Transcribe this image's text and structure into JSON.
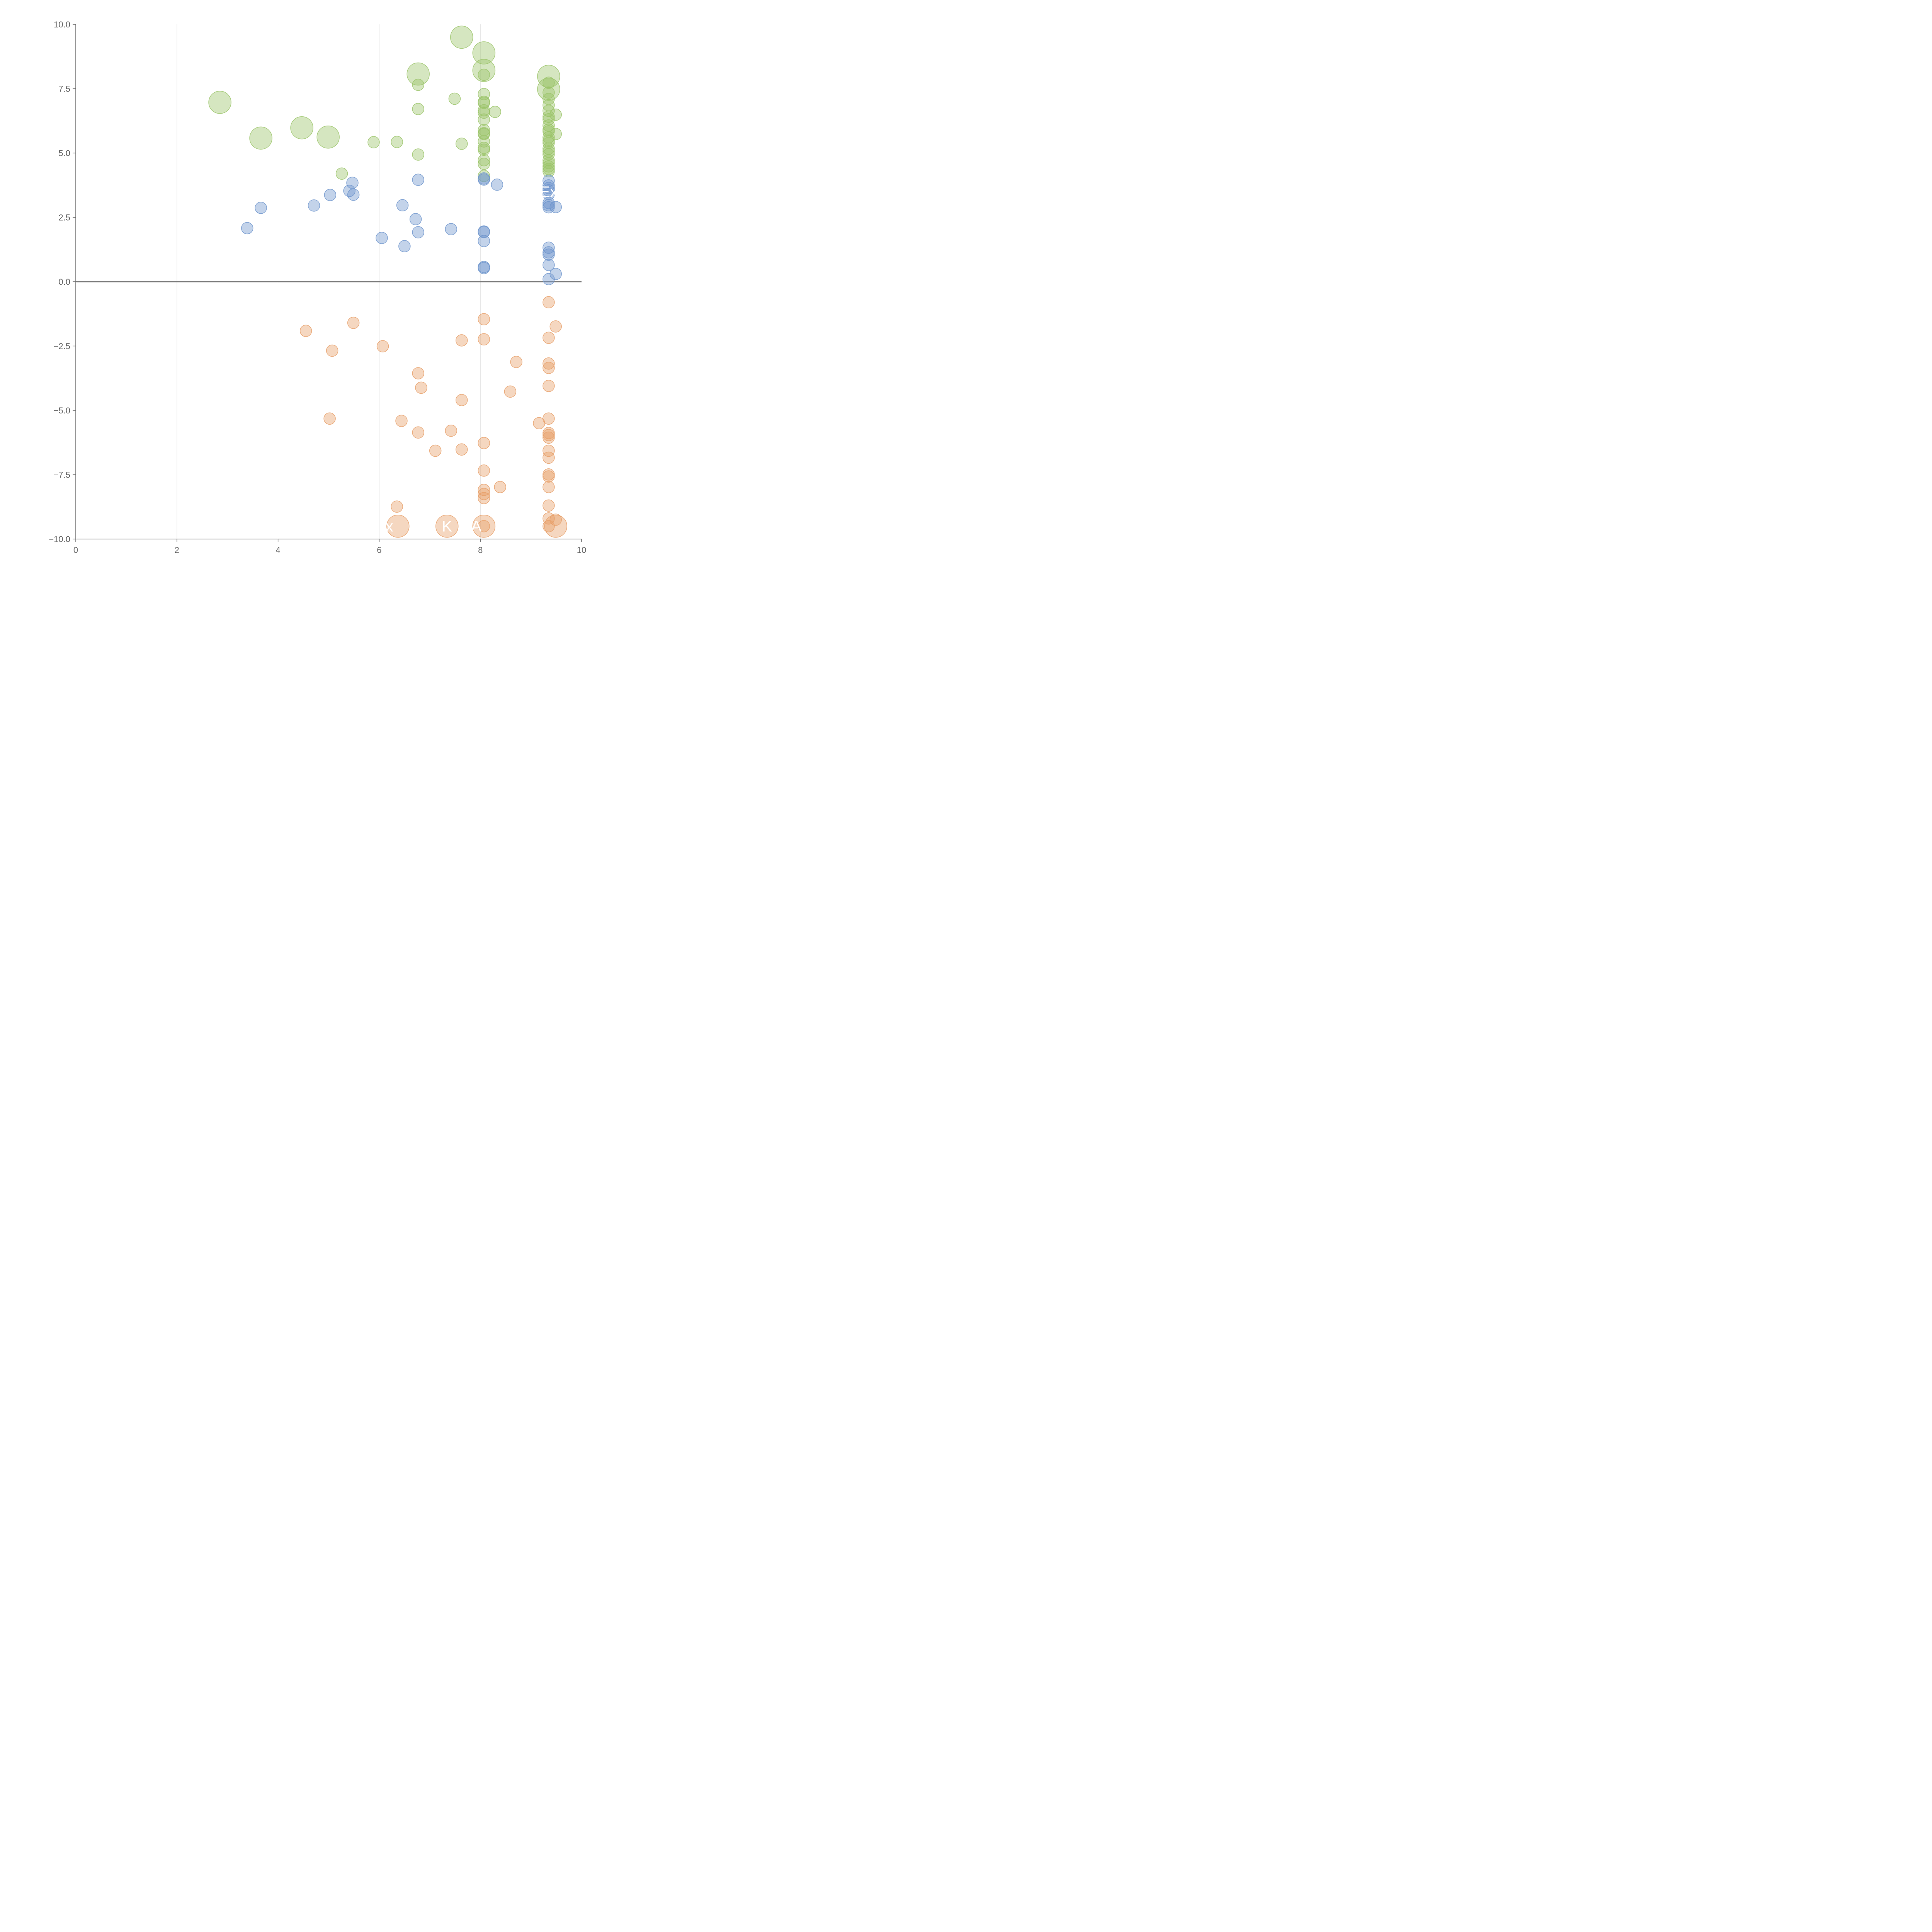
{
  "chart_data": {
    "type": "scatter",
    "title": "",
    "xlabel": "",
    "ylabel": "",
    "xlim": [
      0,
      10
    ],
    "ylim": [
      -10,
      10
    ],
    "x_ticks": [
      "0",
      "2",
      "4",
      "6",
      "8",
      "10"
    ],
    "y_ticks": [
      "10.0",
      "7.5",
      "5.0",
      "2.5",
      "0.0",
      "−2.5",
      "−5.0",
      "−7.5",
      "−10.0"
    ],
    "x_gridlines": [
      2,
      4,
      6,
      8
    ],
    "zero_line": 0,
    "marker": "bubble",
    "colors": {
      "green": "#9bc46a",
      "blue": "#6f95cc",
      "orange": "#e8a06a",
      "axis": "#666666",
      "grid": "#dddddd"
    },
    "series": [
      {
        "color": "green",
        "points": [
          [
            2.85,
            6.97,
            2
          ],
          [
            3.66,
            5.58,
            2
          ],
          [
            4.47,
            5.98,
            2
          ],
          [
            4.99,
            5.62,
            2
          ],
          [
            5.26,
            4.2,
            1
          ],
          [
            5.89,
            5.42,
            1
          ],
          [
            6.35,
            5.43,
            1
          ],
          [
            6.77,
            8.07,
            2
          ],
          [
            6.77,
            7.65,
            1
          ],
          [
            6.77,
            6.71,
            1
          ],
          [
            6.77,
            4.94,
            1
          ],
          [
            7.49,
            7.11,
            1
          ],
          [
            7.63,
            9.5,
            2
          ],
          [
            7.63,
            5.36,
            1
          ],
          [
            8.07,
            8.89,
            2
          ],
          [
            8.07,
            8.21,
            2
          ],
          [
            8.07,
            8.04,
            1
          ],
          [
            8.07,
            7.29,
            1
          ],
          [
            8.07,
            6.99,
            1
          ],
          [
            8.07,
            6.95,
            1
          ],
          [
            8.07,
            6.66,
            1
          ],
          [
            8.07,
            6.57,
            1
          ],
          [
            8.07,
            6.3,
            1
          ],
          [
            8.07,
            5.89,
            1
          ],
          [
            8.07,
            5.77,
            1
          ],
          [
            8.07,
            5.74,
            1
          ],
          [
            8.07,
            5.45,
            1
          ],
          [
            8.07,
            5.2,
            1
          ],
          [
            8.07,
            5.13,
            1
          ],
          [
            8.07,
            4.72,
            1
          ],
          [
            8.07,
            4.58,
            1
          ],
          [
            8.07,
            4.11,
            1
          ],
          [
            8.29,
            6.6,
            1
          ],
          [
            9.35,
            7.98,
            2
          ],
          [
            9.35,
            7.48,
            2
          ],
          [
            9.35,
            7.73,
            1
          ],
          [
            9.35,
            7.35,
            1
          ],
          [
            9.35,
            7.1,
            1
          ],
          [
            9.35,
            6.86,
            1
          ],
          [
            9.35,
            6.64,
            1
          ],
          [
            9.35,
            6.41,
            1
          ],
          [
            9.35,
            6.31,
            1
          ],
          [
            9.35,
            6.07,
            1
          ],
          [
            9.35,
            5.91,
            1
          ],
          [
            9.35,
            5.84,
            1
          ],
          [
            9.35,
            5.61,
            1
          ],
          [
            9.35,
            5.48,
            1
          ],
          [
            9.35,
            5.39,
            1
          ],
          [
            9.35,
            5.17,
            1
          ],
          [
            9.35,
            5.06,
            1
          ],
          [
            9.35,
            4.95,
            1
          ],
          [
            9.35,
            4.72,
            1
          ],
          [
            9.35,
            4.61,
            1
          ],
          [
            9.35,
            4.48,
            1
          ],
          [
            9.35,
            4.38,
            1
          ],
          [
            9.35,
            4.29,
            1
          ],
          [
            9.49,
            6.49,
            1
          ],
          [
            9.49,
            5.74,
            1
          ]
        ]
      },
      {
        "color": "blue",
        "points": [
          [
            3.39,
            2.08,
            1
          ],
          [
            3.66,
            2.87,
            1
          ],
          [
            4.71,
            2.96,
            1
          ],
          [
            5.03,
            3.37,
            1
          ],
          [
            5.41,
            3.53,
            1
          ],
          [
            5.47,
            3.84,
            1
          ],
          [
            5.49,
            3.38,
            1
          ],
          [
            6.05,
            1.7,
            1
          ],
          [
            6.46,
            2.97,
            1
          ],
          [
            6.5,
            1.38,
            1
          ],
          [
            6.72,
            2.43,
            1
          ],
          [
            6.77,
            3.96,
            1
          ],
          [
            6.77,
            1.92,
            1
          ],
          [
            7.42,
            2.04,
            1
          ],
          [
            8.07,
            4.01,
            1
          ],
          [
            8.07,
            3.97,
            1
          ],
          [
            8.07,
            1.95,
            1
          ],
          [
            8.07,
            1.93,
            1
          ],
          [
            8.07,
            1.58,
            1
          ],
          [
            8.07,
            0.57,
            1
          ],
          [
            8.07,
            0.53,
            1
          ],
          [
            8.33,
            3.77,
            1
          ],
          [
            9.35,
            3.92,
            1
          ],
          [
            9.35,
            3.74,
            1
          ],
          [
            9.35,
            3.64,
            1
          ],
          [
            9.35,
            3.55,
            1
          ],
          [
            9.35,
            3.4,
            1
          ],
          [
            9.35,
            3.06,
            1
          ],
          [
            9.35,
            2.97,
            1
          ],
          [
            9.35,
            2.89,
            1
          ],
          [
            9.35,
            1.32,
            1
          ],
          [
            9.35,
            1.14,
            1
          ],
          [
            9.35,
            1.05,
            1
          ],
          [
            9.35,
            0.65,
            1
          ],
          [
            9.35,
            0.1,
            1
          ],
          [
            9.49,
            2.9,
            1
          ],
          [
            9.49,
            0.3,
            1
          ]
        ]
      },
      {
        "color": "orange",
        "points": [
          [
            4.55,
            -1.91,
            1
          ],
          [
            5.02,
            -5.32,
            1
          ],
          [
            5.07,
            -2.68,
            1
          ],
          [
            5.49,
            -1.6,
            1
          ],
          [
            6.07,
            -2.51,
            1
          ],
          [
            6.35,
            -8.74,
            1
          ],
          [
            6.37,
            -9.5,
            2
          ],
          [
            6.44,
            -5.41,
            1
          ],
          [
            6.77,
            -3.56,
            1
          ],
          [
            6.77,
            -5.86,
            1
          ],
          [
            6.83,
            -4.12,
            1
          ],
          [
            7.11,
            -6.57,
            1
          ],
          [
            7.34,
            -9.5,
            2
          ],
          [
            7.42,
            -5.79,
            1
          ],
          [
            7.63,
            -2.28,
            1
          ],
          [
            7.63,
            -4.6,
            1
          ],
          [
            7.63,
            -6.52,
            1
          ],
          [
            8.07,
            -1.46,
            1
          ],
          [
            8.07,
            -2.24,
            1
          ],
          [
            8.07,
            -6.27,
            1
          ],
          [
            8.07,
            -7.34,
            1
          ],
          [
            8.07,
            -8.09,
            1
          ],
          [
            8.07,
            -8.25,
            1
          ],
          [
            8.07,
            -8.41,
            1
          ],
          [
            8.07,
            -9.5,
            2
          ],
          [
            8.07,
            -9.5,
            1
          ],
          [
            8.39,
            -7.98,
            1
          ],
          [
            8.59,
            -4.27,
            1
          ],
          [
            8.71,
            -3.12,
            1
          ],
          [
            9.16,
            -5.5,
            1
          ],
          [
            9.35,
            -0.8,
            1
          ],
          [
            9.35,
            -2.18,
            1
          ],
          [
            9.35,
            -3.18,
            1
          ],
          [
            9.35,
            -3.35,
            1
          ],
          [
            9.35,
            -4.05,
            1
          ],
          [
            9.35,
            -5.32,
            1
          ],
          [
            9.35,
            -5.88,
            1
          ],
          [
            9.35,
            -5.96,
            1
          ],
          [
            9.35,
            -6.06,
            1
          ],
          [
            9.35,
            -6.57,
            1
          ],
          [
            9.35,
            -6.84,
            1
          ],
          [
            9.35,
            -7.49,
            1
          ],
          [
            9.35,
            -7.57,
            1
          ],
          [
            9.35,
            -7.98,
            1
          ],
          [
            9.35,
            -8.7,
            1
          ],
          [
            9.35,
            -9.2,
            1
          ],
          [
            9.35,
            -9.5,
            1
          ],
          [
            9.49,
            -1.74,
            1
          ],
          [
            9.49,
            -9.25,
            1
          ],
          [
            9.49,
            -9.5,
            2
          ]
        ]
      }
    ],
    "annotations": [
      {
        "text": "Ex",
        "x": 9.35,
        "y": 3.5
      },
      {
        "text": "K",
        "x": 7.34,
        "y": -9.5
      },
      {
        "text": "A",
        "x": 7.92,
        "y": -9.5
      },
      {
        "text": "x",
        "x": 6.2,
        "y": -9.5
      }
    ]
  }
}
